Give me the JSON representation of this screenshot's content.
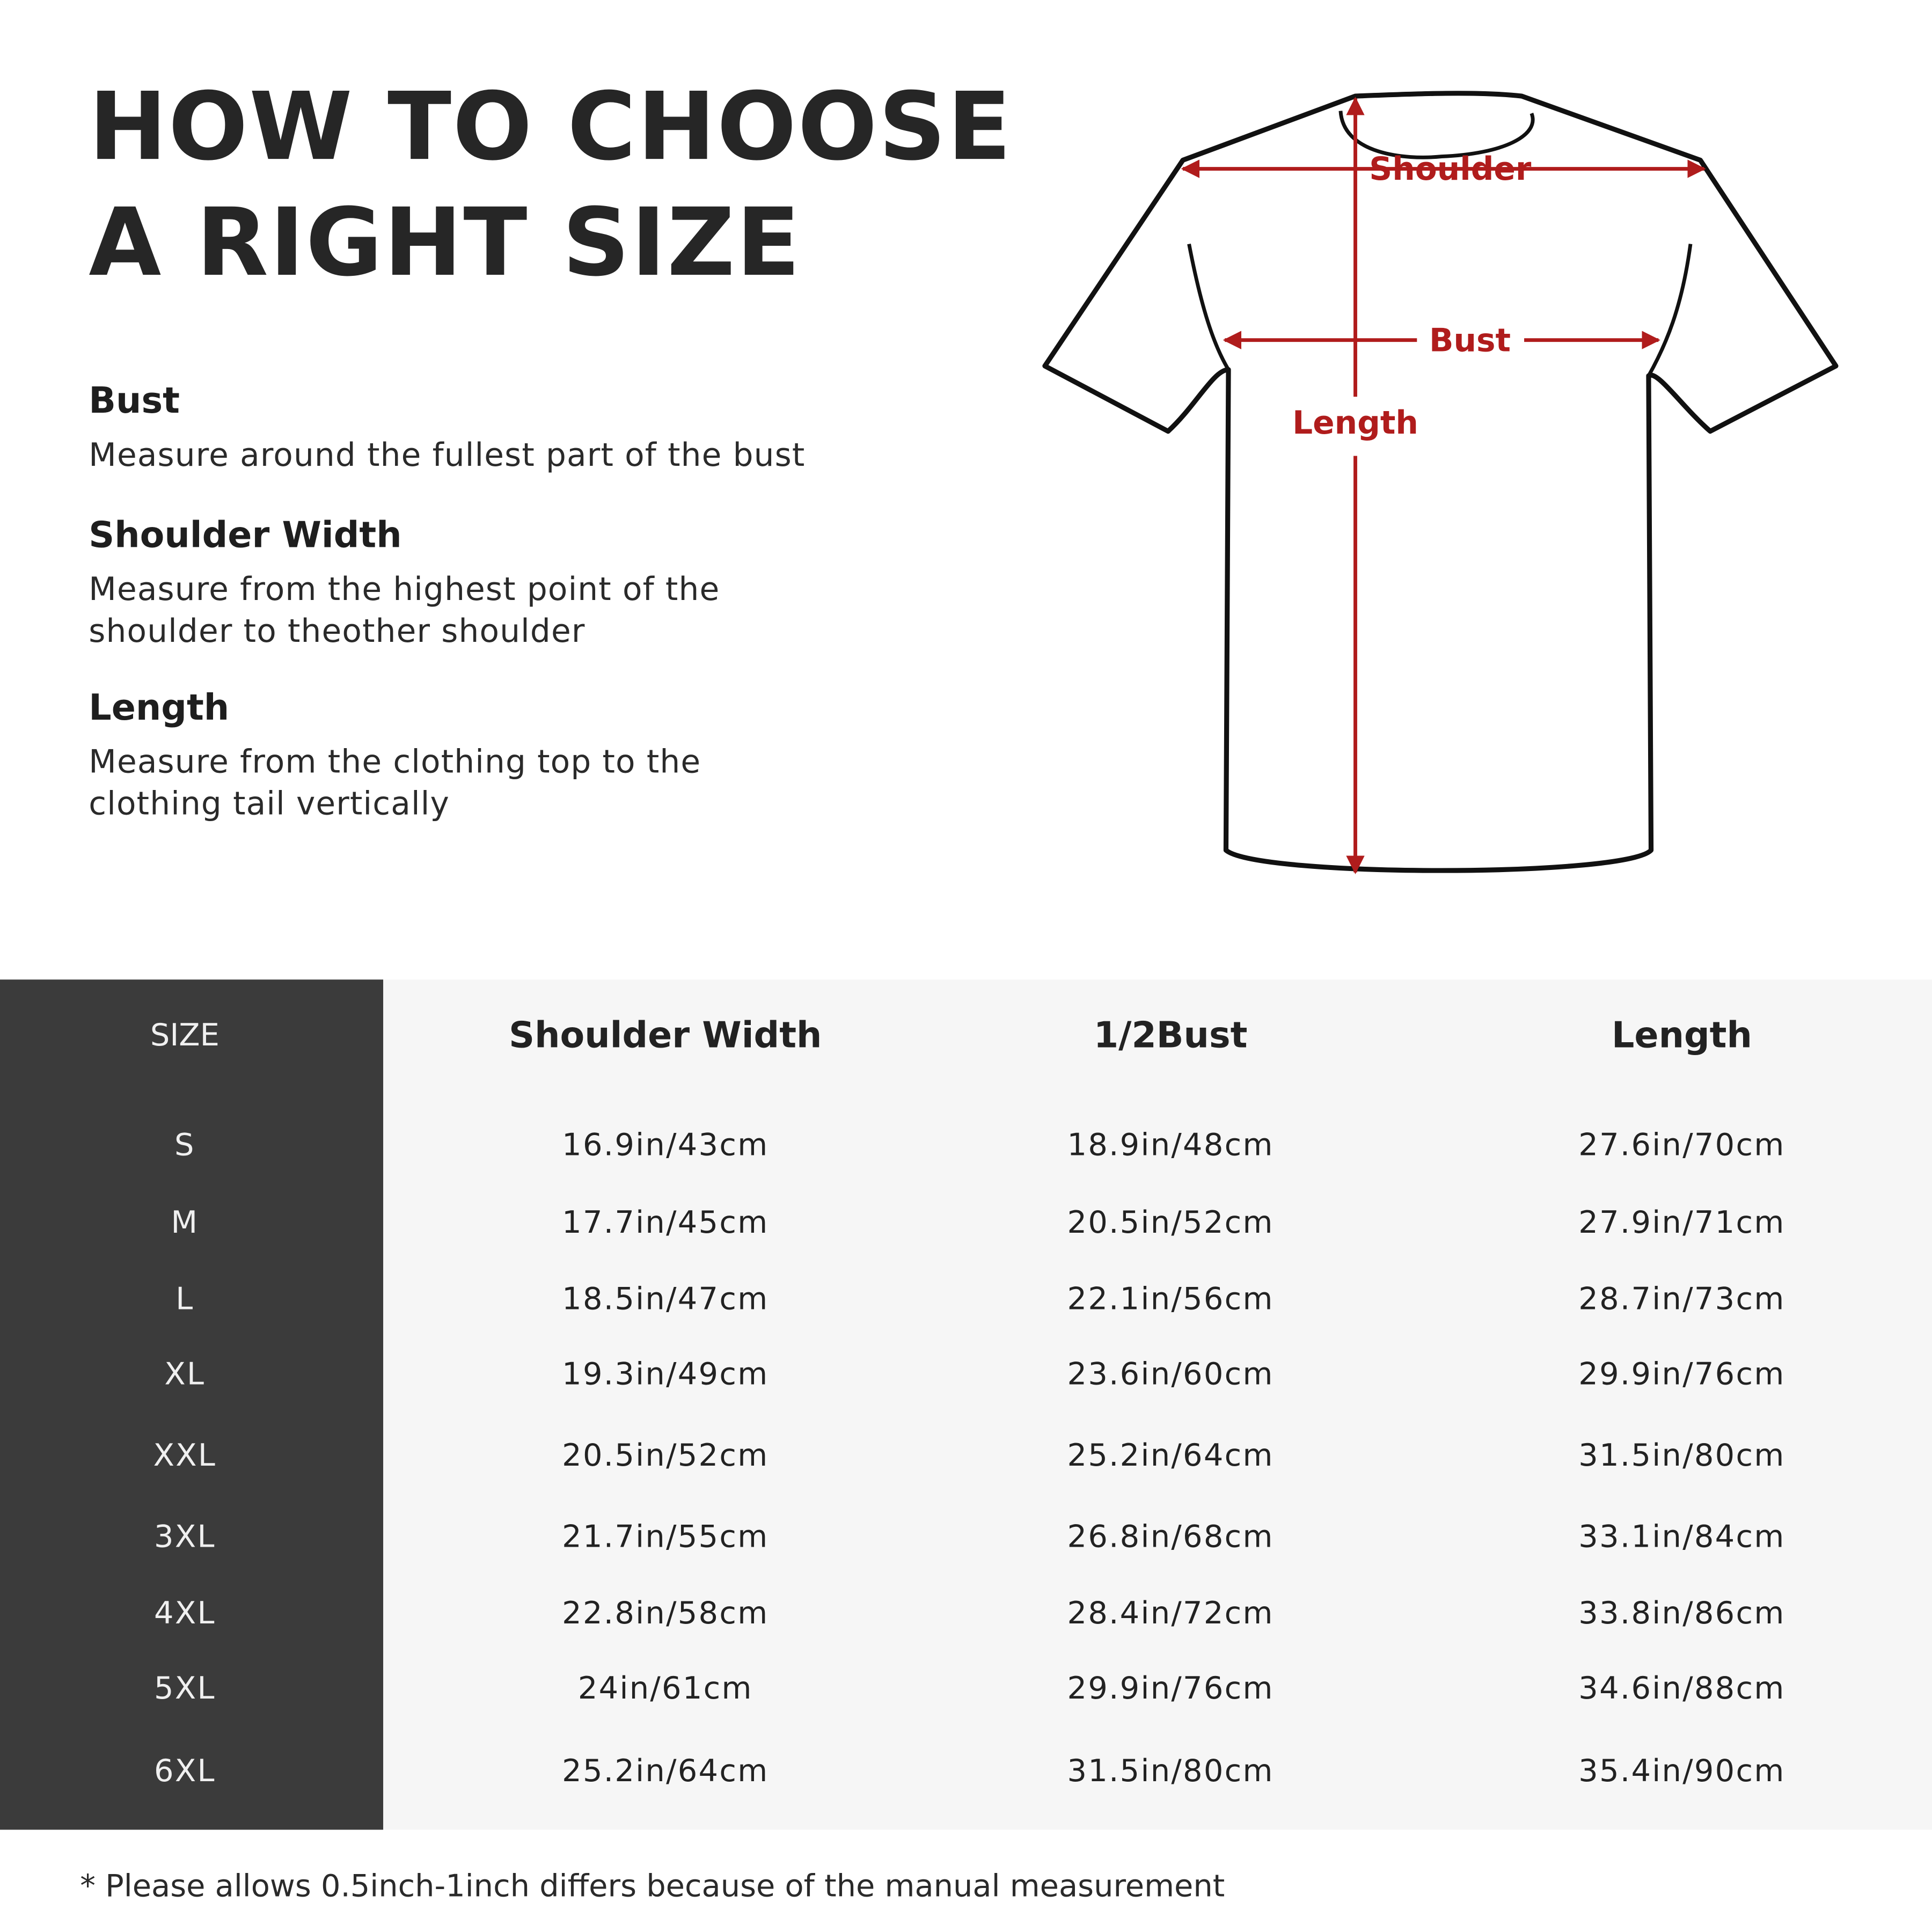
{
  "title_lines": [
    "HOW TO CHOOSE",
    "A RIGHT SIZE"
  ],
  "guide": [
    {
      "heading": "Bust",
      "lines": [
        "Measure around the fullest part of the bust"
      ]
    },
    {
      "heading": "Shoulder Width",
      "lines": [
        "Measure from the highest point of the",
        "shoulder to theother shoulder"
      ]
    },
    {
      "heading": "Length",
      "lines": [
        "Measure from the clothing top to the",
        "clothing tail vertically"
      ]
    }
  ],
  "diagram": {
    "shoulder_label": "Shoulder",
    "bust_label": "Bust",
    "length_label": "Length",
    "accent_color": "#b01c1c"
  },
  "table": {
    "headers": [
      "SIZE",
      "Shoulder Width",
      "1/2Bust",
      "Length"
    ],
    "rows": [
      [
        "S",
        "16.9in/43cm",
        "18.9in/48cm",
        "27.6in/70cm"
      ],
      [
        "M",
        "17.7in/45cm",
        "20.5in/52cm",
        "27.9in/71cm"
      ],
      [
        "L",
        "18.5in/47cm",
        "22.1in/56cm",
        "28.7in/73cm"
      ],
      [
        "XL",
        "19.3in/49cm",
        "23.6in/60cm",
        "29.9in/76cm"
      ],
      [
        "XXL",
        "20.5in/52cm",
        "25.2in/64cm",
        "31.5in/80cm"
      ],
      [
        "3XL",
        "21.7in/55cm",
        "26.8in/68cm",
        "33.1in/84cm"
      ],
      [
        "4XL",
        "22.8in/58cm",
        "28.4in/72cm",
        "33.8in/86cm"
      ],
      [
        "5XL",
        "24in/61cm",
        "29.9in/76cm",
        "34.6in/88cm"
      ],
      [
        "6XL",
        "25.2in/64cm",
        "31.5in/80cm",
        "35.4in/90cm"
      ]
    ]
  },
  "footnote": "* Please allows 0.5inch-1inch differs because of the  manual measurement"
}
